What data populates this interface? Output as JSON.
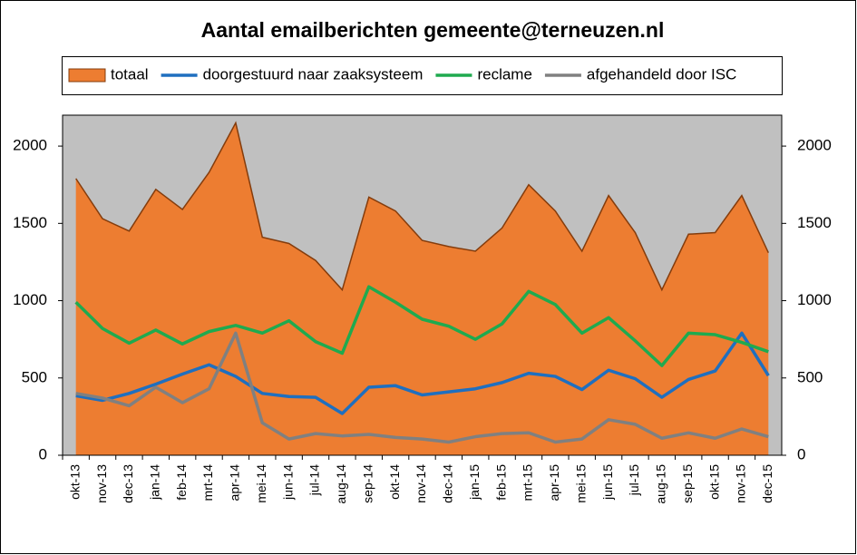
{
  "chart_data": {
    "type": "line",
    "title": "Aantal emailberichten gemeente@terneuzen.nl",
    "categories": [
      "okt-13",
      "nov-13",
      "dec-13",
      "jan-14",
      "feb-14",
      "mrt-14",
      "apr-14",
      "mei-14",
      "jun-14",
      "jul-14",
      "aug-14",
      "sep-14",
      "okt-14",
      "nov-14",
      "dec-14",
      "jan-15",
      "feb-15",
      "mrt-15",
      "apr-15",
      "mei-15",
      "jun-15",
      "jul-15",
      "aug-15",
      "sep-15",
      "okt-15",
      "nov-15",
      "dec-15"
    ],
    "series": [
      {
        "name": "totaal",
        "type": "area",
        "color": "#ed7d31",
        "values": [
          1790,
          1530,
          1450,
          1720,
          1590,
          1830,
          2150,
          1410,
          1370,
          1260,
          1070,
          1670,
          1580,
          1390,
          1350,
          1320,
          1470,
          1750,
          1580,
          1320,
          1680,
          1440,
          1070,
          1430,
          1440,
          1680,
          1310
        ]
      },
      {
        "name": "doorgestuurd naar zaaksysteem",
        "type": "line",
        "color": "#1f6fbf",
        "values": [
          385,
          355,
          400,
          460,
          525,
          585,
          510,
          400,
          380,
          375,
          270,
          440,
          450,
          390,
          410,
          430,
          470,
          530,
          510,
          425,
          550,
          495,
          375,
          490,
          545,
          790,
          515
        ]
      },
      {
        "name": "reclame",
        "type": "line",
        "color": "#1faa4f",
        "values": [
          990,
          820,
          725,
          810,
          720,
          800,
          840,
          790,
          870,
          735,
          660,
          1090,
          990,
          880,
          835,
          750,
          850,
          1060,
          975,
          790,
          890,
          740,
          580,
          790,
          780,
          730,
          670
        ]
      },
      {
        "name": "afgehandeld door ISC",
        "type": "line",
        "color": "#808080",
        "values": [
          400,
          370,
          320,
          440,
          340,
          430,
          790,
          210,
          105,
          140,
          125,
          135,
          115,
          105,
          85,
          120,
          140,
          145,
          85,
          105,
          230,
          200,
          110,
          145,
          110,
          170,
          120
        ]
      }
    ],
    "ylim": [
      0,
      2200
    ],
    "yticks": [
      0,
      500,
      1000,
      1500,
      2000
    ],
    "y2lim": [
      0,
      2200
    ],
    "y2ticks": [
      0,
      500,
      1000,
      1500,
      2000
    ],
    "plot_background": "#c0c0c0",
    "legend": "top"
  }
}
